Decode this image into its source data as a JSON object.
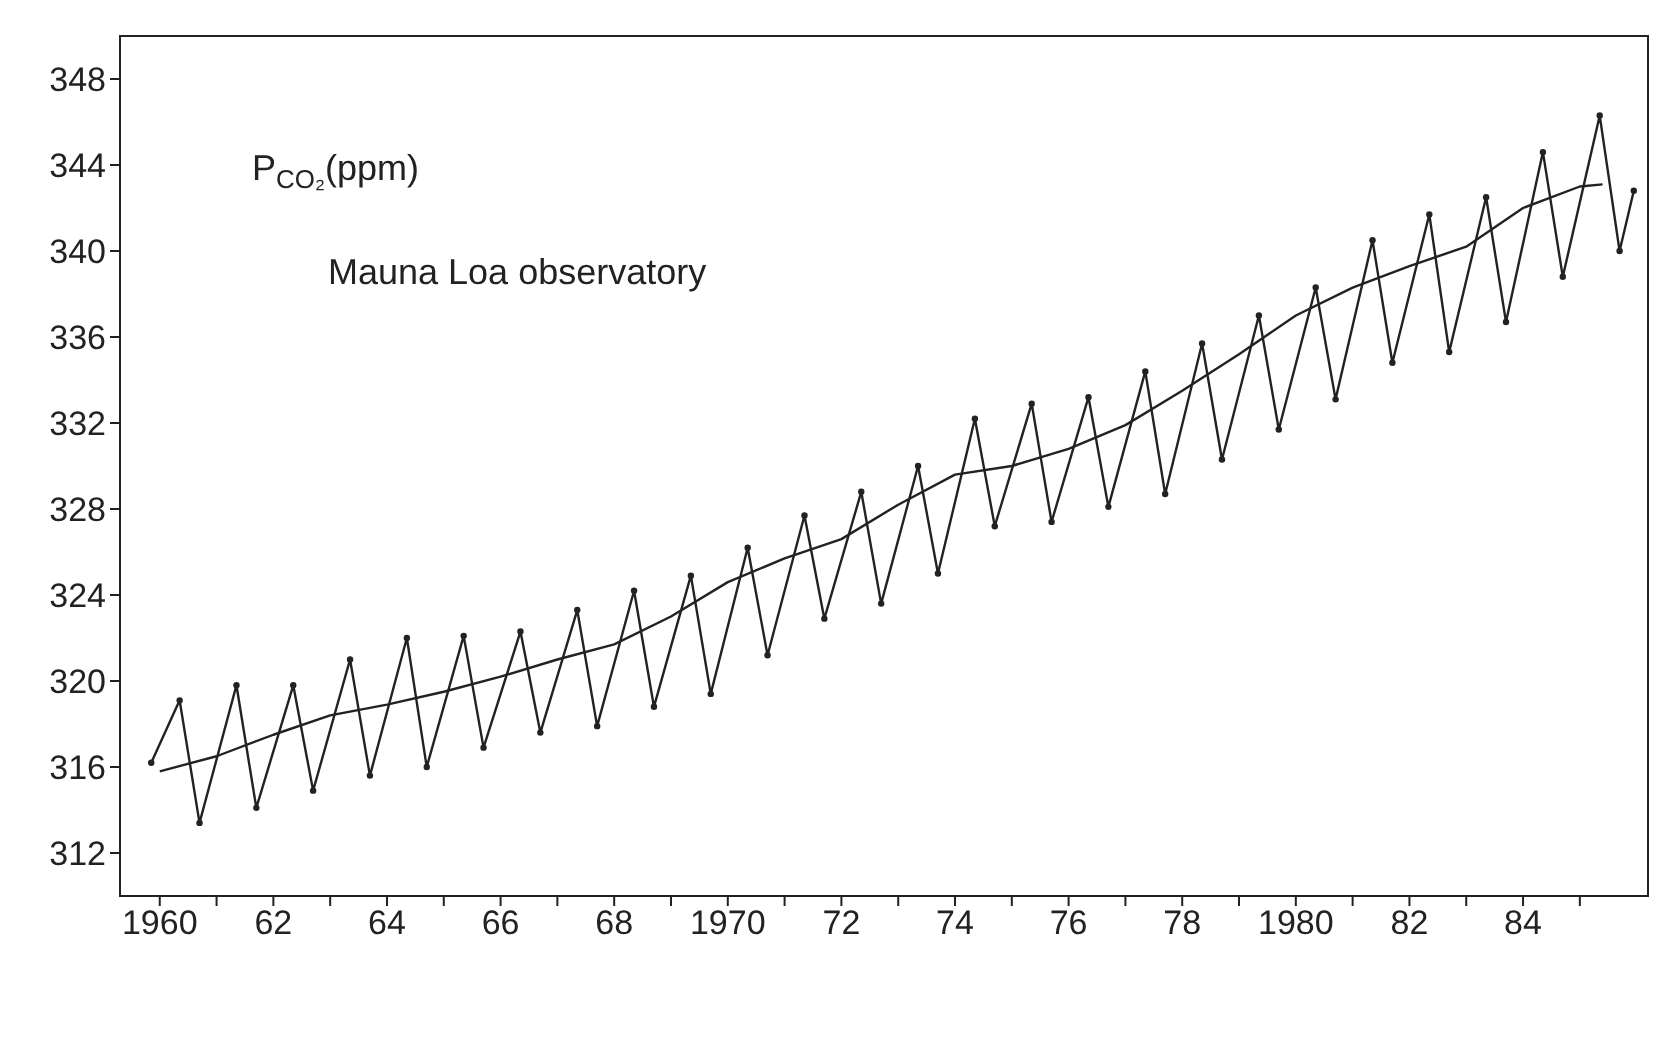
{
  "chart_data": {
    "type": "line",
    "ylabel": "P$_{CO₂}$(ppm)",
    "annotations": [
      "Mauna Loa observatory"
    ],
    "xlim": [
      1959.3,
      1986.2
    ],
    "ylim": [
      310,
      350
    ],
    "xticks": [
      {
        "value": 1960,
        "label": "1960"
      },
      {
        "value": 1961,
        "label": null
      },
      {
        "value": 1962,
        "label": "62"
      },
      {
        "value": 1963,
        "label": null
      },
      {
        "value": 1964,
        "label": "64"
      },
      {
        "value": 1965,
        "label": null
      },
      {
        "value": 1966,
        "label": "66"
      },
      {
        "value": 1967,
        "label": null
      },
      {
        "value": 1968,
        "label": "68"
      },
      {
        "value": 1969,
        "label": null
      },
      {
        "value": 1970,
        "label": "1970"
      },
      {
        "value": 1971,
        "label": null
      },
      {
        "value": 1972,
        "label": "72"
      },
      {
        "value": 1973,
        "label": null
      },
      {
        "value": 1974,
        "label": "74"
      },
      {
        "value": 1975,
        "label": null
      },
      {
        "value": 1976,
        "label": "76"
      },
      {
        "value": 1977,
        "label": null
      },
      {
        "value": 1978,
        "label": "78"
      },
      {
        "value": 1979,
        "label": null
      },
      {
        "value": 1980,
        "label": "1980"
      },
      {
        "value": 1981,
        "label": null
      },
      {
        "value": 1982,
        "label": "82"
      },
      {
        "value": 1983,
        "label": null
      },
      {
        "value": 1984,
        "label": "84"
      },
      {
        "value": 1985,
        "label": null
      }
    ],
    "yticks": [
      312,
      316,
      320,
      324,
      328,
      332,
      336,
      340,
      344,
      348
    ],
    "grid": false,
    "series": [
      {
        "color": "#222222",
        "marker": "circle",
        "x": [
          1959.85,
          1960.35,
          1960.7,
          1961.35,
          1961.7,
          1962.35,
          1962.7,
          1963.35,
          1963.7,
          1964.35,
          1964.7,
          1965.35,
          1965.7,
          1966.35,
          1966.7,
          1967.35,
          1967.7,
          1968.35,
          1968.7,
          1969.35,
          1969.7,
          1970.35,
          1970.7,
          1971.35,
          1971.7,
          1972.35,
          1972.7,
          1973.35,
          1973.7,
          1974.35,
          1974.7,
          1975.35,
          1975.7,
          1976.35,
          1976.7,
          1977.35,
          1977.7,
          1978.35,
          1978.7,
          1979.35,
          1979.7,
          1980.35,
          1980.7,
          1981.35,
          1981.7,
          1982.35,
          1982.7,
          1983.35,
          1983.7,
          1984.35,
          1984.7,
          1985.35,
          1985.7,
          1985.95
        ],
        "values": [
          316.2,
          319.1,
          313.4,
          319.8,
          314.1,
          319.8,
          314.9,
          321.0,
          315.6,
          322.0,
          316.0,
          322.1,
          316.9,
          322.3,
          317.6,
          323.3,
          317.9,
          324.2,
          318.8,
          324.9,
          319.4,
          326.2,
          321.2,
          327.7,
          322.9,
          328.8,
          323.6,
          330.0,
          325.0,
          332.2,
          327.2,
          332.9,
          327.4,
          333.2,
          328.1,
          334.4,
          328.7,
          335.7,
          330.3,
          337.0,
          331.7,
          338.3,
          333.1,
          340.5,
          334.8,
          341.7,
          335.3,
          342.5,
          336.7,
          344.6,
          338.8,
          346.3,
          340.0,
          342.8
        ]
      },
      {
        "color": "#222222",
        "marker": "none",
        "x": [
          1960.0,
          1961,
          1962,
          1963,
          1964,
          1965,
          1966,
          1967,
          1968,
          1969,
          1970,
          1971,
          1972,
          1973,
          1974,
          1975,
          1976,
          1977,
          1978,
          1979,
          1980,
          1981,
          1982,
          1983,
          1984,
          1985,
          1985.4
        ],
        "values": [
          315.8,
          316.5,
          317.5,
          318.4,
          318.9,
          319.5,
          320.2,
          321.0,
          321.7,
          323.0,
          324.6,
          325.7,
          326.6,
          328.2,
          329.6,
          330.0,
          330.8,
          331.9,
          333.5,
          335.2,
          337.0,
          338.3,
          339.3,
          340.2,
          342.0,
          343.0,
          343.1
        ]
      }
    ]
  }
}
